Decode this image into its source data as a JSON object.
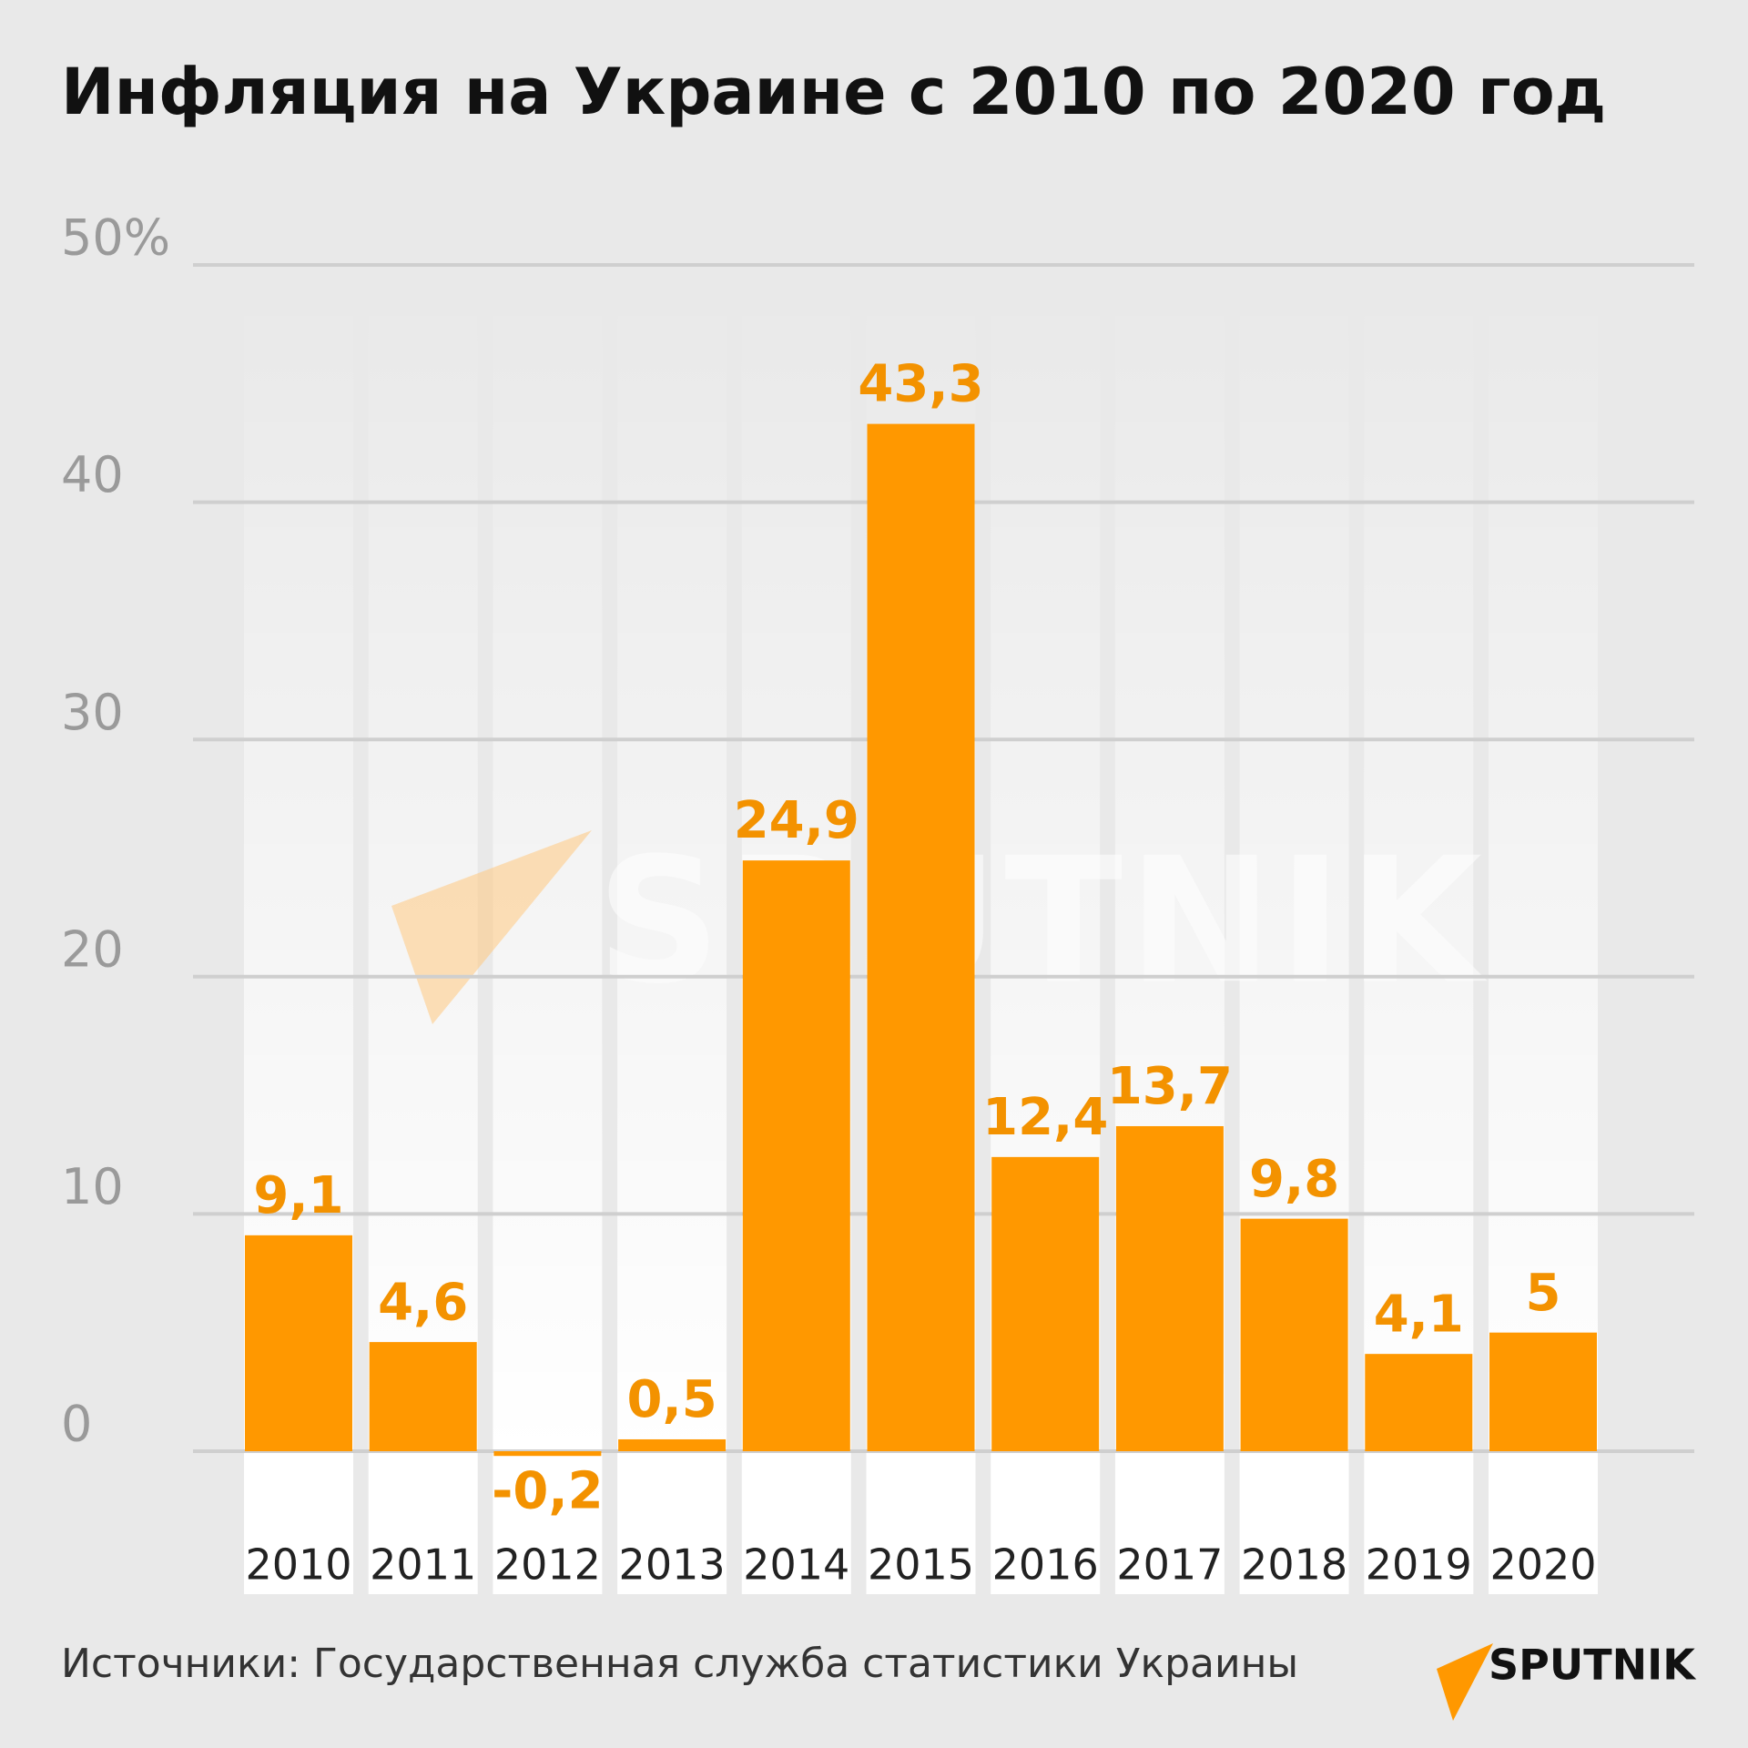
{
  "chart_data": {
    "type": "bar",
    "title": "Инфляция на Украине с 2010 по 2020 год",
    "categories": [
      "2010",
      "2011",
      "2012",
      "2013",
      "2014",
      "2015",
      "2016",
      "2017",
      "2018",
      "2019",
      "2020"
    ],
    "values": [
      9.1,
      4.6,
      -0.2,
      0.5,
      24.9,
      43.3,
      12.4,
      13.7,
      9.8,
      4.1,
      5
    ],
    "value_labels": [
      "9,1",
      "4,6",
      "-0,2",
      "0,5",
      "24,9",
      "43,3",
      "12,4",
      "13,7",
      "9,8",
      "4,1",
      "5"
    ],
    "color": "#ff9800",
    "label_color": "#f39200",
    "ylim": [
      0,
      50
    ],
    "yticks": [
      0,
      10,
      20,
      30,
      40,
      {
        "value": 50,
        "label": "50%"
      }
    ],
    "grid": true,
    "source": "Источники: Государственная служба статистики Украины",
    "logo": "SPUTNIK"
  }
}
